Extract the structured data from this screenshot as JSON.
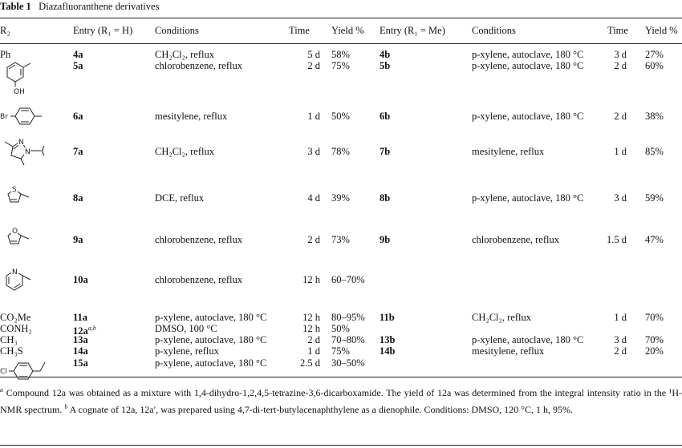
{
  "title": {
    "label": "Table 1",
    "text": "Diazafluoranthene derivatives"
  },
  "table": {
    "header": [
      "R₂",
      "Entry (R₁ = H)",
      "Conditions",
      "Time",
      "Yield %",
      "Entry (R₁ = Me)",
      "Conditions",
      "Time",
      "Yield %"
    ],
    "rows": [
      {
        "r2": "Ph",
        "entry_a": "4a",
        "cond_a": "CH₂Cl₂, reflux",
        "time_a": "5 d",
        "yield_a": "58%",
        "entry_b": "4b",
        "cond_b": "p-xylene, autoclave, 180 °C",
        "time_b": "3 d",
        "yield_b": "27%"
      },
      {
        "entry_a": "5a",
        "cond_a": "chlorobenzene, reflux",
        "time_a": "2 d",
        "yield_a": "75%",
        "entry_b": "5b",
        "cond_b": "p-xylene, autoclave, 180 °C",
        "time_b": "2 d",
        "yield_b": "60%"
      },
      {
        "entry_a": "6a",
        "cond_a": "mesitylene, reflux",
        "time_a": "1 d",
        "yield_a": "50%",
        "entry_b": "6b",
        "cond_b": "p-xylene, autoclave, 180 °C",
        "time_b": "2 d",
        "yield_b": "38%"
      },
      {
        "entry_a": "7a",
        "cond_a": "CH₂Cl₂, reflux",
        "time_a": "3 d",
        "yield_a": "78%",
        "entry_b": "7b",
        "cond_b": "mesitylene, reflux",
        "time_b": "1 d",
        "yield_b": "85%"
      },
      {
        "entry_a": "8a",
        "cond_a": "DCE, reflux",
        "time_a": "4 d",
        "yield_a": "39%",
        "entry_b": "8b",
        "cond_b": "p-xylene, autoclave, 180 °C",
        "time_b": "3 d",
        "yield_b": "59%"
      },
      {
        "entry_a": "9a",
        "cond_a": "chlorobenzene, reflux",
        "time_a": "2 d",
        "yield_a": "73%",
        "entry_b": "9b",
        "cond_b": "chlorobenzene, reflux",
        "time_b": "1.5 d",
        "yield_b": "47%"
      },
      {
        "entry_a": "10a",
        "cond_a": "chlorobenzene, reflux",
        "time_a": "12 h",
        "yield_a": "60–70%"
      },
      {
        "r2": "CO₂Me",
        "entry_a": "11a",
        "cond_a": "p-xylene, autoclave, 180 °C",
        "time_a": "12 h",
        "yield_a": "80–95%",
        "entry_b": "11b",
        "cond_b": "CH₂Cl₂, reflux",
        "time_b": "1 d",
        "yield_b": "70%"
      },
      {
        "r2": "CONH₂",
        "entry_a": "12a",
        "entry_a_note": "a,b",
        "cond_a": "DMSO, 100 °C",
        "time_a": "12 h",
        "yield_a": "50%"
      },
      {
        "r2": "CH₃",
        "entry_a": "13a",
        "cond_a": "p-xylene, autoclave, 180 °C",
        "time_a": "2 d",
        "yield_a": "70–80%",
        "entry_b": "13b",
        "cond_b": "p-xylene, autoclave, 180 °C",
        "time_b": "3 d",
        "yield_b": "70%"
      },
      {
        "r2": "CH₃S",
        "entry_a": "14a",
        "cond_a": "p-xylene, reflux",
        "time_a": "1 d",
        "yield_a": "75%",
        "entry_b": "14b",
        "cond_b": "mesitylene, reflux",
        "time_b": "2 d",
        "yield_b": "20%"
      },
      {
        "entry_a": "15a",
        "cond_a": "p-xylene, autoclave, 180 °C",
        "time_a": "2.5 d",
        "yield_a": "30–50%"
      }
    ]
  },
  "structures": {
    "oh": "OH",
    "br": "Br",
    "n": "N",
    "s": "S",
    "o": "O",
    "cl": "Cl"
  },
  "footnotes": [
    {
      "marker": "a",
      "text": "Compound 12a was obtained as a mixture with 1,4-dihydro-1,2,4,5-tetrazine-3,6-dicarboxamide. The yield of 12a was determined from the integral intensity ratio in the ¹H-NMR spectrum."
    },
    {
      "marker": "b",
      "text": "A cognate of 12a, 12a′, was prepared using 4,7-di-tert-butylacenaphthylene as a dienophile. Conditions: DMSO, 120 °C, 1 h, 95%."
    }
  ]
}
